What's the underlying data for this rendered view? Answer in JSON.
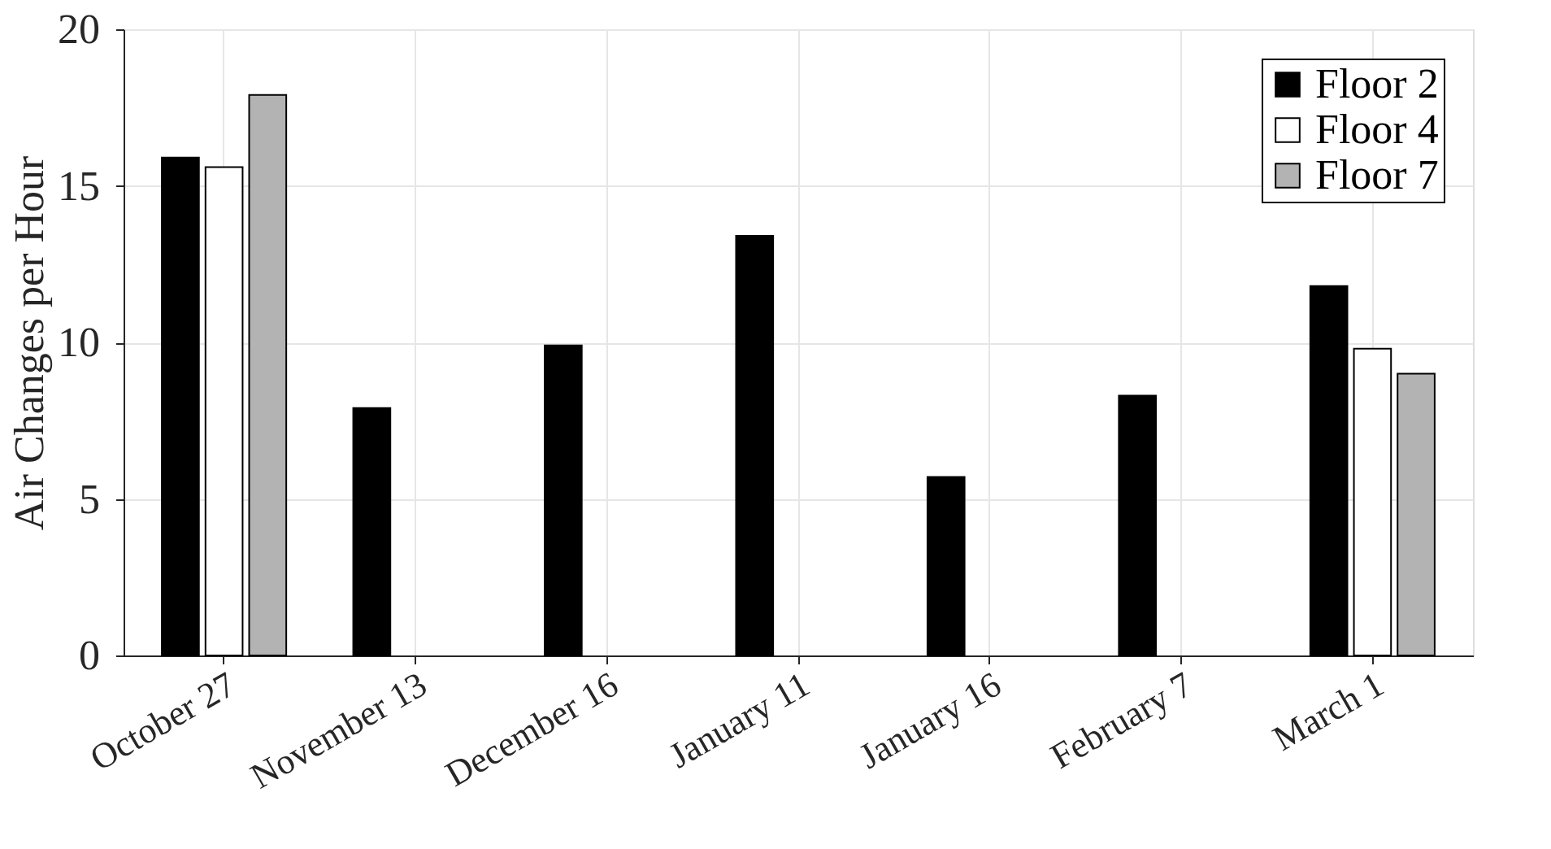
{
  "chart_data": {
    "type": "bar",
    "ylabel": "Air Changes per Hour",
    "categories": [
      "October 27",
      "November 13",
      "December 16",
      "January 11",
      "January 16",
      "February 7",
      "March 1"
    ],
    "series": [
      {
        "name": "Floor 2",
        "color": "#000000",
        "values": [
          15.9,
          7.9,
          9.9,
          13.4,
          5.7,
          8.3,
          11.8
        ]
      },
      {
        "name": "Floor 4",
        "color": "#ffffff",
        "values": [
          15.6,
          null,
          null,
          null,
          null,
          null,
          9.8
        ]
      },
      {
        "name": "Floor 7",
        "color": "#b3b3b3",
        "values": [
          17.9,
          null,
          null,
          null,
          null,
          null,
          9.0
        ]
      }
    ],
    "ylim": [
      0,
      20
    ],
    "yticks": [
      0,
      5,
      10,
      15,
      20
    ],
    "grid": true,
    "legend": "top right"
  }
}
